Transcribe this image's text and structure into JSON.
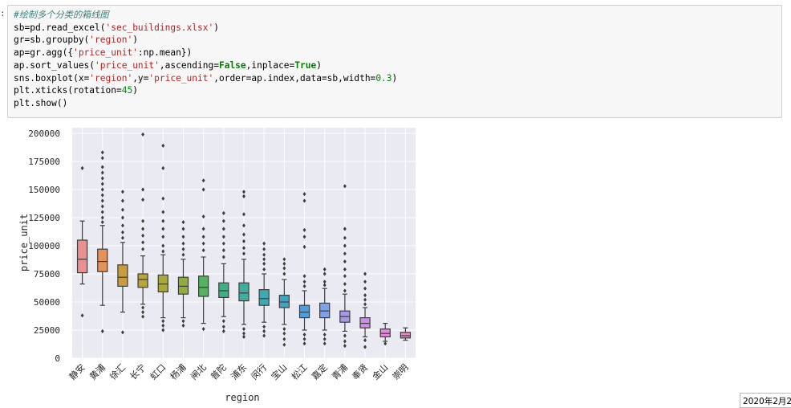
{
  "cell": {
    "prompt": ":",
    "code": {
      "comment": "#绘制多个分类的箱线图",
      "l2a": "sb=pd.read_excel(",
      "l2s": "'sec_buildings.xlsx'",
      "l2b": ")",
      "l3a": "gr=sb.groupby(",
      "l3s": "'region'",
      "l3b": ")",
      "l4a": "ap=gr.agg({",
      "l4s": "'price_unit'",
      "l4b": ":np.mean})",
      "l5a": "ap.sort_values(",
      "l5s": "'price_unit'",
      "l5b": ",ascending=",
      "l5k": "False",
      "l5c": ",inplace=",
      "l5k2": "True",
      "l5d": ")",
      "l6a": "sns.boxplot(x=",
      "l6s": "'region'",
      "l6b": ",y=",
      "l6s2": "'price_unit'",
      "l6c": ",order=ap.index,data=sb,width=",
      "l6n": "0.3",
      "l6d": ")",
      "l7a": "plt.xticks(rotation=",
      "l7n": "45",
      "l7b": ")",
      "l8a": "plt.show",
      "l8b": "()"
    }
  },
  "taskbar": {
    "date": "2020年2月2"
  },
  "chart_data": {
    "type": "box",
    "xlabel": "region",
    "ylabel": "price_unit",
    "ylim": [
      0,
      205000
    ],
    "yticks": [
      0,
      25000,
      50000,
      75000,
      100000,
      125000,
      150000,
      175000,
      200000
    ],
    "ytick_labels": [
      "0",
      "25000",
      "50000",
      "75000",
      "100000",
      "125000",
      "150000",
      "175000",
      "200000"
    ],
    "grid": true,
    "categories": [
      "静安",
      "黄浦",
      "徐汇",
      "长宁",
      "虹口",
      "杨浦",
      "闸北",
      "普陀",
      "浦东",
      "闵行",
      "宝山",
      "松江",
      "嘉定",
      "青浦",
      "奉贤",
      "金山",
      "崇明"
    ],
    "colors": [
      "#e99093",
      "#e2925a",
      "#c89d3e",
      "#b8a63a",
      "#a7a93c",
      "#8fae3b",
      "#54b262",
      "#3eb183",
      "#40ae9e",
      "#3ea9b1",
      "#3fa4c4",
      "#4b9ee0",
      "#7fa1ea",
      "#a898ea",
      "#cd8ee6",
      "#e288dd",
      "#e78ac5"
    ],
    "boxes": [
      {
        "whislo": 66000,
        "q1": 76000,
        "med": 88000,
        "q3": 105000,
        "whishi": 122000,
        "fliers": [
          169000,
          38000
        ]
      },
      {
        "whislo": 47000,
        "q1": 77000,
        "med": 86000,
        "q3": 97000,
        "whishi": 118000,
        "fliers": [
          183000,
          178000,
          170000,
          165000,
          160000,
          155000,
          150000,
          145000,
          140000,
          135000,
          130000,
          125000,
          121000,
          24000
        ]
      },
      {
        "whislo": 41000,
        "q1": 64000,
        "med": 72000,
        "q3": 83000,
        "whishi": 103000,
        "fliers": [
          148000,
          140000,
          132000,
          125000,
          118000,
          112000,
          107000,
          23000
        ]
      },
      {
        "whislo": 48000,
        "q1": 63000,
        "med": 70000,
        "q3": 75000,
        "whishi": 91000,
        "fliers": [
          199000,
          150000,
          141000,
          122000,
          115000,
          109000,
          103000,
          97000,
          45000,
          41000,
          37000
        ]
      },
      {
        "whislo": 36000,
        "q1": 59000,
        "med": 66000,
        "q3": 74000,
        "whishi": 92000,
        "fliers": [
          189000,
          169000,
          142000,
          130000,
          122000,
          115000,
          108000,
          100000,
          95000,
          33000,
          29000,
          25000
        ]
      },
      {
        "whislo": 36000,
        "q1": 57000,
        "med": 64000,
        "q3": 72000,
        "whishi": 88000,
        "fliers": [
          121000,
          115000,
          108000,
          102000,
          97000,
          92000,
          33000,
          29000
        ]
      },
      {
        "whislo": 31000,
        "q1": 55000,
        "med": 63000,
        "q3": 73000,
        "whishi": 90000,
        "fliers": [
          158000,
          150000,
          126000,
          115000,
          108000,
          102000,
          96000,
          26000
        ]
      },
      {
        "whislo": 37000,
        "q1": 54000,
        "med": 60000,
        "q3": 67000,
        "whishi": 84000,
        "fliers": [
          129000,
          122000,
          115000,
          108000,
          102000,
          96000,
          90000,
          33000,
          28000,
          24000
        ]
      },
      {
        "whislo": 30000,
        "q1": 51000,
        "med": 58000,
        "q3": 67000,
        "whishi": 88000,
        "fliers": [
          148000,
          144000,
          128000,
          118000,
          110000,
          104000,
          98000,
          93000,
          26000,
          22000,
          19000
        ]
      },
      {
        "whislo": 32000,
        "q1": 47000,
        "med": 53000,
        "q3": 61000,
        "whishi": 75000,
        "fliers": [
          102000,
          97000,
          92000,
          88000,
          84000,
          79000,
          28000,
          24000,
          20000
        ]
      },
      {
        "whislo": 30000,
        "q1": 45000,
        "med": 50000,
        "q3": 56000,
        "whishi": 70000,
        "fliers": [
          88000,
          84000,
          80000,
          75000,
          26000,
          22000,
          17000,
          12000
        ]
      },
      {
        "whislo": 25000,
        "q1": 36000,
        "med": 41000,
        "q3": 47000,
        "whishi": 60000,
        "fliers": [
          146000,
          140000,
          114000,
          108000,
          99000,
          73000,
          68000,
          64000,
          21000,
          17000,
          13000
        ]
      },
      {
        "whislo": 25000,
        "q1": 36000,
        "med": 42000,
        "q3": 49000,
        "whishi": 62000,
        "fliers": [
          79000,
          75000,
          68000,
          65000,
          21000,
          17000,
          13000
        ]
      },
      {
        "whislo": 24000,
        "q1": 32000,
        "med": 37000,
        "q3": 42000,
        "whishi": 57000,
        "fliers": [
          153000,
          115000,
          107000,
          100000,
          93000,
          86000,
          79000,
          73000,
          66000,
          60000,
          20000,
          15000,
          11000
        ]
      },
      {
        "whislo": 19000,
        "q1": 27000,
        "med": 31000,
        "q3": 36000,
        "whishi": 45000,
        "fliers": [
          75000,
          68000,
          62000,
          56000,
          52000,
          48000,
          16000,
          10000
        ]
      },
      {
        "whislo": 15000,
        "q1": 19000,
        "med": 22000,
        "q3": 26000,
        "whishi": 31000,
        "fliers": [
          13000
        ]
      },
      {
        "whislo": 16000,
        "q1": 18000,
        "med": 20000,
        "q3": 23000,
        "whishi": 27000,
        "fliers": []
      }
    ]
  }
}
